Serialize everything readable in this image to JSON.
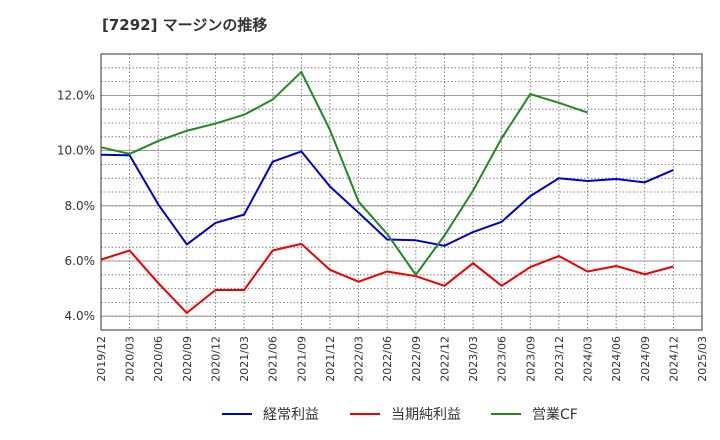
{
  "title": "[7292]  マージンの推移",
  "chart_data": {
    "type": "line",
    "title": "[7292]  マージンの推移",
    "xlabel": "",
    "ylabel": "",
    "ylim": [
      3.5,
      13.5
    ],
    "yticks": [
      "4.0%",
      "6.0%",
      "8.0%",
      "10.0%",
      "12.0%"
    ],
    "ytick_values": [
      4,
      6,
      8,
      10,
      12
    ],
    "grid": true,
    "legend_position": "bottom",
    "x": [
      "2019/12",
      "2020/03",
      "2020/06",
      "2020/09",
      "2020/12",
      "2021/03",
      "2021/06",
      "2021/09",
      "2021/12",
      "2022/03",
      "2022/06",
      "2022/09",
      "2022/12",
      "2023/03",
      "2023/06",
      "2023/09",
      "2023/12",
      "2024/03",
      "2024/06",
      "2024/09",
      "2024/12",
      "2025/03"
    ],
    "series": [
      {
        "name": "経常利益",
        "color": "#0000cc",
        "values": [
          9.85,
          9.83,
          8.05,
          6.6,
          7.38,
          7.68,
          9.6,
          9.97,
          8.7,
          7.75,
          6.78,
          6.75,
          6.55,
          7.05,
          7.42,
          8.35,
          9.0,
          8.9,
          8.97,
          8.85,
          9.3,
          null
        ]
      },
      {
        "name": "当期純利益",
        "color": "#ee0000",
        "values": [
          6.05,
          6.38,
          5.2,
          4.12,
          4.95,
          4.95,
          6.38,
          6.62,
          5.68,
          5.25,
          5.62,
          5.45,
          5.1,
          5.92,
          5.1,
          5.78,
          6.18,
          5.62,
          5.82,
          5.52,
          5.8,
          null
        ]
      },
      {
        "name": "営業CF",
        "color": "#228822",
        "values": [
          10.12,
          9.88,
          10.35,
          10.72,
          10.98,
          11.3,
          11.85,
          12.85,
          10.75,
          8.15,
          6.98,
          5.5,
          6.92,
          8.55,
          10.45,
          12.05,
          11.73,
          11.38,
          null,
          null,
          null,
          null
        ]
      }
    ]
  }
}
